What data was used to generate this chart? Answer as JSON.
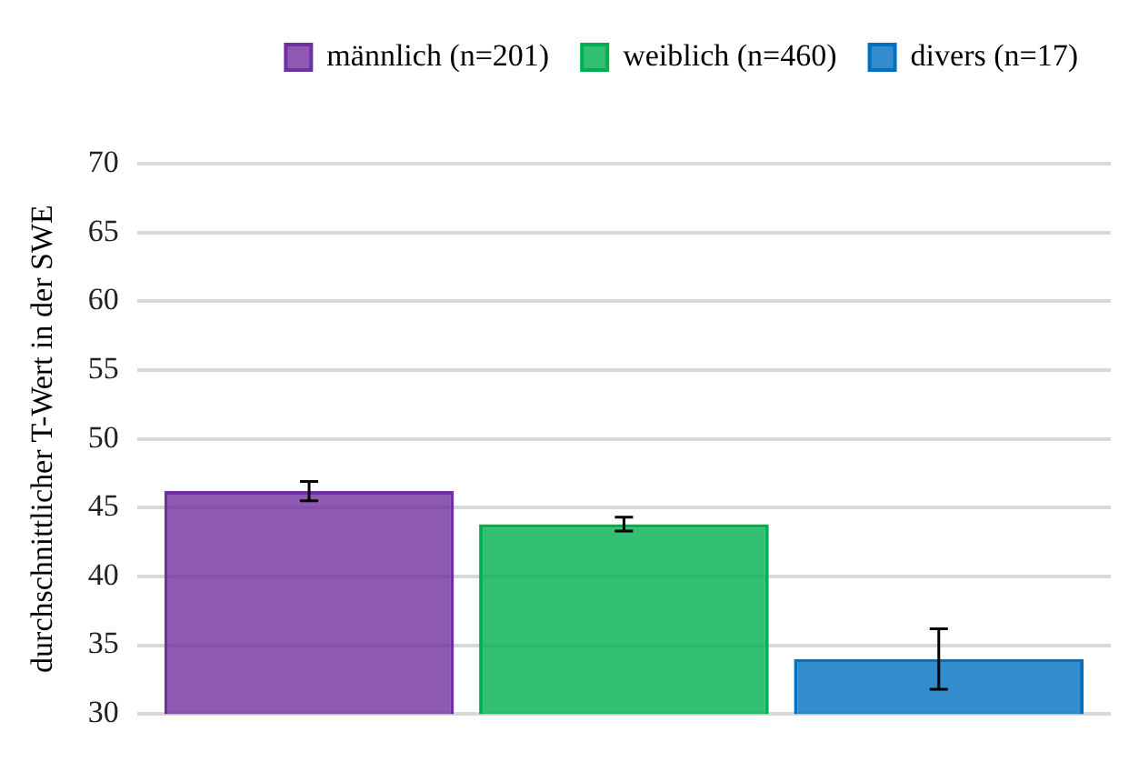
{
  "chart_data": {
    "type": "bar",
    "ylabel": "durchschnittlicher T-Wert in der SWE",
    "categories": [
      null
    ],
    "series": [
      {
        "name": "männlich (n=201)",
        "color": "#7030a0",
        "values": [
          46.2
        ],
        "errors": [
          0.7
        ]
      },
      {
        "name": "weiblich (n=460)",
        "color": "#00b050",
        "values": [
          43.8
        ],
        "errors": [
          0.5
        ]
      },
      {
        "name": "divers (n=17)",
        "color": "#0070c0",
        "values": [
          34.0
        ],
        "errors": [
          2.2
        ]
      }
    ],
    "ylim": [
      30,
      70
    ],
    "yticks": [
      30,
      35,
      40,
      45,
      50,
      55,
      60,
      65,
      70
    ],
    "grid": "y",
    "legend": "top"
  }
}
